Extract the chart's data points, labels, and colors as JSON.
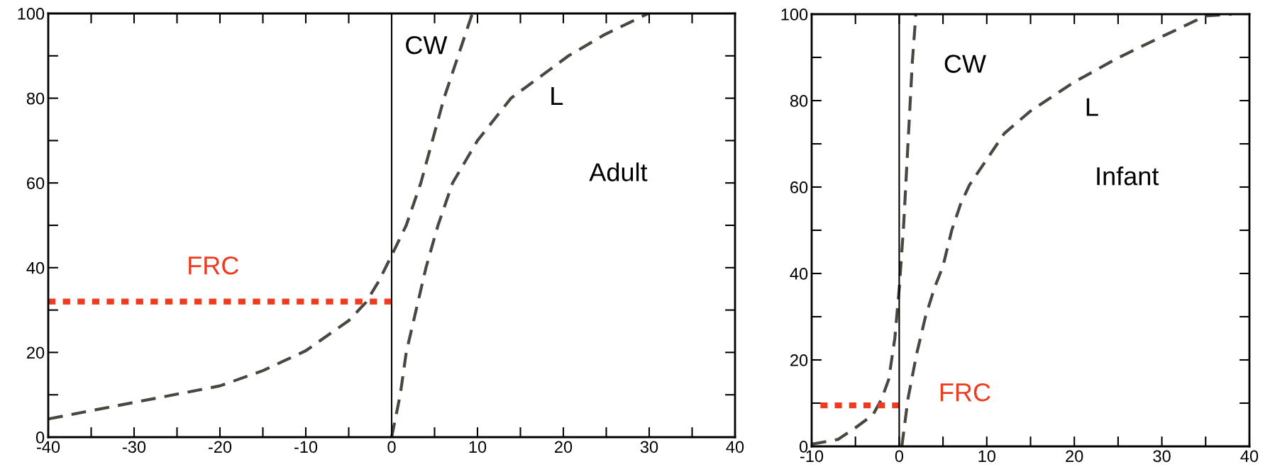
{
  "chart_data": [
    {
      "type": "line",
      "line_style": "dashed",
      "marker": "none",
      "grid": false,
      "legend": false,
      "xlim": [
        -40,
        40
      ],
      "ylim": [
        0,
        100
      ],
      "xticks": [
        -40,
        {
          "value": -35,
          "label": null
        },
        -30,
        {
          "value": -25,
          "label": null
        },
        -20,
        {
          "value": -15,
          "label": null
        },
        -10,
        {
          "value": -5,
          "label": null
        },
        0,
        {
          "value": 5,
          "label": null
        },
        10,
        {
          "value": 15,
          "label": null
        },
        20,
        {
          "value": 25,
          "label": null
        },
        30,
        {
          "value": 35,
          "label": null
        },
        40
      ],
      "yticks": [
        0,
        {
          "value": 10,
          "label": null
        },
        20,
        {
          "value": 30,
          "label": null
        },
        40,
        {
          "value": 50,
          "label": null
        },
        60,
        {
          "value": 70,
          "label": null
        },
        80,
        {
          "value": 90,
          "label": null
        },
        100
      ],
      "series": [
        {
          "name": "CW",
          "color": "#4a4740",
          "x": [
            -40,
            -30,
            -20,
            -15,
            -10,
            -5,
            -3,
            -1.5,
            0,
            1.7,
            3.4,
            6.1,
            9.4
          ],
          "values": [
            4.3,
            8.2,
            12.1,
            15.7,
            20.4,
            27.5,
            31.8,
            36.8,
            42.9,
            50,
            60,
            80,
            100
          ]
        },
        {
          "name": "L",
          "color": "#4a4740",
          "x": [
            0,
            1.0,
            1.7,
            4.0,
            5.4,
            7.1,
            10,
            13.9,
            20.6,
            24.8,
            29.9
          ],
          "values": [
            0,
            10,
            20,
            40,
            50,
            60,
            70,
            80,
            90,
            95,
            100
          ]
        },
        {
          "name": "FRC",
          "color": "#ee3a1e",
          "line_style": "dotted",
          "x": [
            -40,
            0
          ],
          "values": [
            32,
            32
          ]
        }
      ],
      "ref_lines": [
        {
          "axis": "x",
          "value": 0,
          "color": "#000000",
          "line_style": "solid"
        }
      ],
      "annotations": [
        "Adult"
      ]
    },
    {
      "type": "line",
      "line_style": "dashed",
      "marker": "none",
      "grid": false,
      "legend": false,
      "xlim": [
        -10,
        40
      ],
      "ylim": [
        0,
        100
      ],
      "xticks": [
        -10,
        {
          "value": -5,
          "label": null
        },
        0,
        {
          "value": 5,
          "label": null
        },
        10,
        {
          "value": 15,
          "label": null
        },
        20,
        {
          "value": 25,
          "label": null
        },
        30,
        {
          "value": 35,
          "label": null
        },
        40
      ],
      "yticks": [
        0,
        {
          "value": 10,
          "label": null
        },
        20,
        {
          "value": 30,
          "label": null
        },
        40,
        {
          "value": 50,
          "label": null
        },
        60,
        {
          "value": 70,
          "label": null
        },
        80,
        {
          "value": 90,
          "label": null
        },
        100
      ],
      "series": [
        {
          "name": "CW",
          "color": "#4a4740",
          "x": [
            -10,
            -7,
            -5,
            -3,
            -2,
            -1.2,
            -0.5,
            0,
            0.5,
            1,
            1.5,
            1.9
          ],
          "values": [
            0.5,
            1.6,
            4.3,
            7.3,
            11,
            15.5,
            25,
            36.5,
            51,
            70,
            89,
            100
          ]
        },
        {
          "name": "L",
          "color": "#4a4740",
          "x": [
            0.3,
            1,
            2,
            3,
            4,
            5,
            6,
            7,
            8,
            10,
            12,
            15,
            20,
            25,
            30,
            35,
            38
          ],
          "values": [
            0,
            11,
            21.5,
            30,
            36.5,
            41.7,
            50,
            56,
            60.4,
            66.4,
            72.4,
            77.6,
            84.3,
            89.9,
            94.8,
            99.6,
            100
          ]
        },
        {
          "name": "FRC",
          "color": "#ee3a1e",
          "line_style": "dotted",
          "x": [
            -9,
            0
          ],
          "values": [
            9.5,
            9.5
          ]
        }
      ],
      "ref_lines": [
        {
          "axis": "x",
          "value": 0,
          "color": "#000000",
          "line_style": "solid"
        }
      ],
      "annotations": [
        "Infant"
      ]
    }
  ]
}
